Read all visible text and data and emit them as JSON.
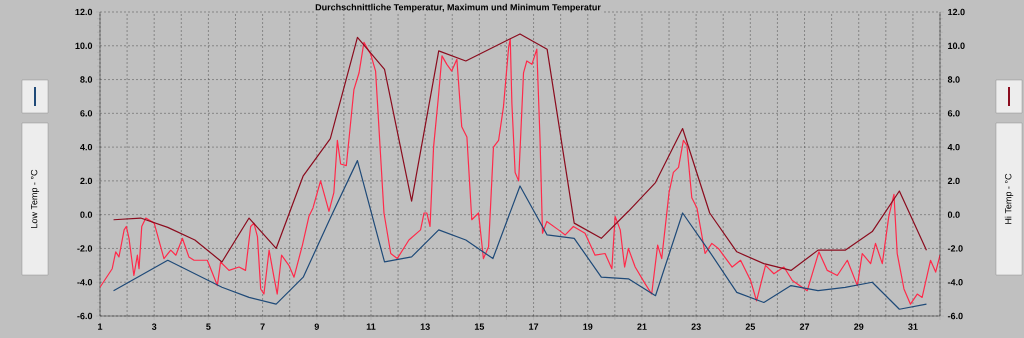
{
  "chart_data": {
    "type": "line",
    "title": "Durchschnittliche Temperatur, Maximum und Minimum Temperatur",
    "ylabel": "Low Temp - °C",
    "y2label": "Hi Temp - °C",
    "xlim": [
      1,
      32
    ],
    "ylim": [
      -6,
      12
    ],
    "y2lim": [
      -6,
      12
    ],
    "xticks": [
      1,
      {
        "value": 2,
        "label": null
      },
      3,
      {
        "value": 4,
        "label": null
      },
      5,
      {
        "value": 6,
        "label": null
      },
      7,
      {
        "value": 8,
        "label": null
      },
      9,
      {
        "value": 10,
        "label": null
      },
      11,
      {
        "value": 12,
        "label": null
      },
      13,
      {
        "value": 14,
        "label": null
      },
      15,
      {
        "value": 16,
        "label": null
      },
      17,
      {
        "value": 18,
        "label": null
      },
      19,
      {
        "value": 20,
        "label": null
      },
      21,
      {
        "value": 22,
        "label": null
      },
      23,
      {
        "value": 24,
        "label": null
      },
      25,
      {
        "value": 26,
        "label": null
      },
      27,
      {
        "value": 28,
        "label": null
      },
      29,
      {
        "value": 30,
        "label": null
      },
      31,
      {
        "value": 32,
        "label": null
      }
    ],
    "yticks": [
      {
        "value": -6,
        "label": "-6.0"
      },
      {
        "value": -4,
        "label": "-4.0"
      },
      {
        "value": -2,
        "label": "-2.0"
      },
      {
        "value": 0,
        "label": "0.0"
      },
      {
        "value": 2,
        "label": "2.0"
      },
      {
        "value": 4,
        "label": "4.0"
      },
      {
        "value": 6,
        "label": "6.0"
      },
      {
        "value": 8,
        "label": "8.0"
      },
      {
        "value": 10,
        "label": "10.0"
      },
      {
        "value": 12,
        "label": "12.0"
      }
    ],
    "y2ticks": [
      {
        "value": -6,
        "label": "-6.0"
      },
      {
        "value": -4,
        "label": "-4.0"
      },
      {
        "value": -2,
        "label": "-2.0"
      },
      {
        "value": 0,
        "label": "0.0"
      },
      {
        "value": 2,
        "label": "2.0"
      },
      {
        "value": 4,
        "label": "4.0"
      },
      {
        "value": 6,
        "label": "6.0"
      },
      {
        "value": 8,
        "label": "8.0"
      },
      {
        "value": 10,
        "label": "10.0"
      },
      {
        "value": 12,
        "label": "12.0"
      }
    ],
    "grid": true,
    "marker": "none",
    "line_style": "solid",
    "series": [
      {
        "color": "#ff2a4a",
        "x": [
          1.0,
          1.45,
          1.58,
          1.7,
          1.89,
          1.97,
          2.07,
          2.25,
          2.38,
          2.44,
          2.54,
          2.69,
          3.0,
          3.36,
          3.61,
          3.8,
          4.04,
          4.28,
          4.47,
          4.96,
          5.21,
          5.33,
          5.45,
          5.76,
          6.13,
          6.37,
          6.56,
          6.68,
          6.81,
          6.93,
          7.05,
          7.24,
          7.42,
          7.54,
          7.7,
          7.97,
          8.16,
          8.47,
          8.71,
          8.86,
          9.14,
          9.45,
          9.63,
          9.76,
          9.88,
          10.09,
          10.37,
          10.56,
          10.74,
          10.99,
          11.17,
          11.48,
          11.73,
          11.97,
          12.4,
          12.83,
          12.96,
          13.06,
          13.18,
          13.31,
          13.49,
          13.62,
          13.8,
          13.98,
          14.17,
          14.35,
          14.54,
          14.72,
          14.97,
          15.15,
          15.34,
          15.52,
          15.71,
          15.89,
          16.08,
          16.14,
          16.2,
          16.32,
          16.45,
          16.63,
          16.75,
          16.94,
          17.12,
          17.24,
          17.33,
          17.49,
          17.92,
          18.17,
          18.47,
          18.9,
          19.27,
          19.64,
          19.89,
          20.01,
          20.2,
          20.36,
          20.5,
          20.75,
          21.12,
          21.36,
          21.58,
          21.73,
          22.0,
          22.16,
          22.35,
          22.53,
          22.66,
          22.84,
          23.03,
          23.33,
          23.58,
          23.82,
          24.33,
          24.64,
          25.01,
          25.23,
          25.56,
          25.87,
          26.24,
          26.55,
          27.1,
          27.53,
          27.84,
          28.21,
          28.58,
          28.95,
          29.13,
          29.44,
          29.62,
          29.87,
          30.11,
          30.3,
          30.42,
          30.67,
          30.91,
          31.16,
          31.34,
          31.65,
          31.84,
          32.0
        ],
        "values": [
          -4.3,
          -3.2,
          -2.2,
          -2.5,
          -0.9,
          -0.7,
          -1.4,
          -3.6,
          -2.4,
          -3.2,
          -0.7,
          -0.2,
          -0.5,
          -2.6,
          -2.1,
          -2.4,
          -1.4,
          -2.5,
          -2.7,
          -2.7,
          -3.7,
          -4.2,
          -2.8,
          -3.3,
          -3.1,
          -3.3,
          -0.7,
          -0.5,
          -1.3,
          -4.4,
          -4.7,
          -2.1,
          -3.7,
          -4.7,
          -2.4,
          -3.0,
          -3.7,
          -1.8,
          -0.1,
          0.4,
          2.0,
          0.2,
          1.3,
          4.4,
          3.0,
          2.9,
          7.4,
          8.4,
          10.2,
          9.5,
          8.5,
          0.1,
          -2.3,
          -2.6,
          -1.5,
          -0.9,
          0.1,
          0.1,
          -0.7,
          4.0,
          7.0,
          9.4,
          8.9,
          8.5,
          9.2,
          5.2,
          4.6,
          -0.3,
          0.1,
          -2.6,
          -1.9,
          4.0,
          4.4,
          6.4,
          9.9,
          10.4,
          6.6,
          2.5,
          2.0,
          8.4,
          9.1,
          8.9,
          9.8,
          4.4,
          -1.1,
          -0.4,
          -0.9,
          -1.2,
          -0.7,
          -1.1,
          -2.4,
          -2.3,
          -3.2,
          -0.1,
          -0.9,
          -3.1,
          -2.0,
          -3.1,
          -4.1,
          -4.7,
          -1.8,
          -2.6,
          1.3,
          2.5,
          2.8,
          4.4,
          4.1,
          1.0,
          0.4,
          -2.3,
          -1.7,
          -2.0,
          -3.1,
          -2.7,
          -3.9,
          -5.1,
          -3.0,
          -3.5,
          -3.1,
          -3.9,
          -4.5,
          -2.2,
          -3.3,
          -3.6,
          -2.7,
          -4.2,
          -2.3,
          -2.9,
          -1.7,
          -2.9,
          -0.1,
          1.2,
          -2.3,
          -4.4,
          -5.3,
          -4.7,
          -4.9,
          -2.7,
          -3.4,
          -2.4
        ]
      },
      {
        "color": "#1f4a78",
        "axis": "y",
        "x": [
          1.5,
          2.5,
          3.5,
          4.5,
          5.5,
          6.5,
          7.5,
          8.5,
          9.5,
          10.5,
          11.5,
          12.5,
          13.5,
          14.5,
          15.5,
          16.5,
          17.5,
          18.5,
          19.5,
          20.5,
          21.5,
          22.5,
          23.5,
          24.5,
          25.5,
          26.5,
          27.5,
          28.5,
          29.5,
          30.5,
          31.5
        ],
        "values": [
          -4.5,
          -3.6,
          -2.7,
          -3.5,
          -4.3,
          -4.9,
          -5.3,
          -3.7,
          -0.2,
          3.2,
          -2.8,
          -2.5,
          -0.9,
          -1.5,
          -2.6,
          1.7,
          -1.2,
          -1.4,
          -3.7,
          -3.8,
          -4.8,
          0.1,
          -2.2,
          -4.6,
          -5.2,
          -4.2,
          -4.5,
          -4.3,
          -4.0,
          -5.6,
          -5.3
        ]
      },
      {
        "color": "#8b0c1e",
        "axis": "y2",
        "x": [
          1.5,
          2.5,
          3.5,
          4.5,
          5.5,
          6.5,
          7.5,
          8.5,
          9.5,
          10.5,
          11.5,
          12.5,
          13.5,
          14.5,
          15.5,
          16.5,
          17.5,
          18.5,
          19.5,
          20.5,
          21.5,
          22.5,
          23.5,
          24.5,
          25.5,
          26.5,
          27.5,
          28.5,
          29.5,
          30.5,
          31.5
        ],
        "values": [
          -0.3,
          -0.2,
          -0.75,
          -1.5,
          -2.8,
          -0.2,
          -2.0,
          2.3,
          4.5,
          10.5,
          8.6,
          0.8,
          9.7,
          9.1,
          9.9,
          10.7,
          9.8,
          -0.5,
          -1.4,
          0.2,
          1.9,
          5.1,
          0.1,
          -2.2,
          -2.9,
          -3.3,
          -2.1,
          -2.1,
          -1.0,
          1.4,
          -2.1
        ]
      }
    ]
  }
}
